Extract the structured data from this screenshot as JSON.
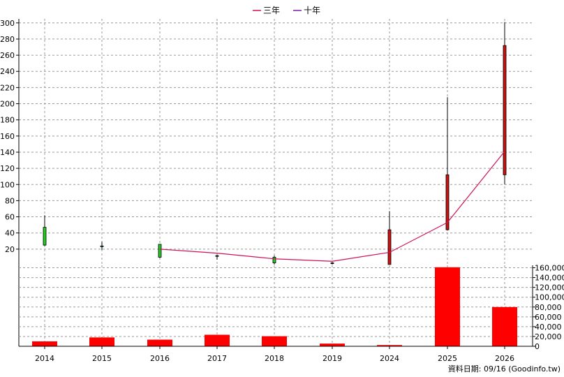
{
  "legend": {
    "items": [
      {
        "label": "三年",
        "color": "#d0105a"
      },
      {
        "label": "十年",
        "color": "#7a1fa8"
      }
    ]
  },
  "source_note": "資料日期: 09/16  (Goodinfo.tw)",
  "chart_data": [
    {
      "type": "candlestick",
      "categories": [
        "2014",
        "2015",
        "2016",
        "2017",
        "2018",
        "2019",
        "2024",
        "2025",
        "2026"
      ],
      "ylim": [
        0,
        305
      ],
      "yticks": [
        20,
        40,
        60,
        80,
        100,
        120,
        140,
        160,
        180,
        200,
        220,
        240,
        260,
        280,
        300
      ],
      "grid": true,
      "up_color": "#cc1010",
      "down_color": "#22cc22",
      "candles": [
        {
          "x": "2014",
          "open": 47,
          "high": 62,
          "low": 24,
          "close": 25
        },
        {
          "x": "2015",
          "open": 24,
          "high": 29,
          "low": 19,
          "close": 23
        },
        {
          "x": "2016",
          "open": 26,
          "high": 26,
          "low": 9,
          "close": 10
        },
        {
          "x": "2017",
          "open": 12,
          "high": 13,
          "low": 7,
          "close": 11
        },
        {
          "x": "2018",
          "open": 10,
          "high": 12,
          "low": 1,
          "close": 3
        },
        {
          "x": "2019",
          "open": 3,
          "high": 4,
          "low": 1,
          "close": 3
        },
        {
          "x": "2024",
          "open": 1,
          "high": 67,
          "low": 1,
          "close": 44
        },
        {
          "x": "2025",
          "open": 44,
          "high": 208,
          "low": 43,
          "close": 112
        },
        {
          "x": "2026",
          "open": 112,
          "high": 301,
          "low": 100,
          "close": 272
        }
      ],
      "series": [
        {
          "name": "三年",
          "color": "#d0105a",
          "points": [
            {
              "x": "2016",
              "y": 20
            },
            {
              "x": "2017",
              "y": 15
            },
            {
              "x": "2018",
              "y": 8
            },
            {
              "x": "2019",
              "y": 5
            },
            {
              "x": "2024",
              "y": 16
            },
            {
              "x": "2025",
              "y": 53
            },
            {
              "x": "2026",
              "y": 141
            }
          ]
        }
      ]
    },
    {
      "type": "bar",
      "categories": [
        "2014",
        "2015",
        "2016",
        "2017",
        "2018",
        "2019",
        "2024",
        "2025",
        "2026"
      ],
      "values": [
        10000,
        18000,
        13500,
        23500,
        20500,
        5500,
        2500,
        161000,
        80000
      ],
      "ylim": [
        0,
        165000
      ],
      "yticks": [
        0,
        20000,
        40000,
        60000,
        80000,
        100000,
        120000,
        140000,
        160000
      ],
      "ytick_labels": [
        "0",
        "20,000",
        "40,000",
        "60,000",
        "80,000",
        "100,000",
        "120,000",
        "140,000",
        "160,000"
      ],
      "grid": true,
      "color": "#ff0000"
    }
  ]
}
